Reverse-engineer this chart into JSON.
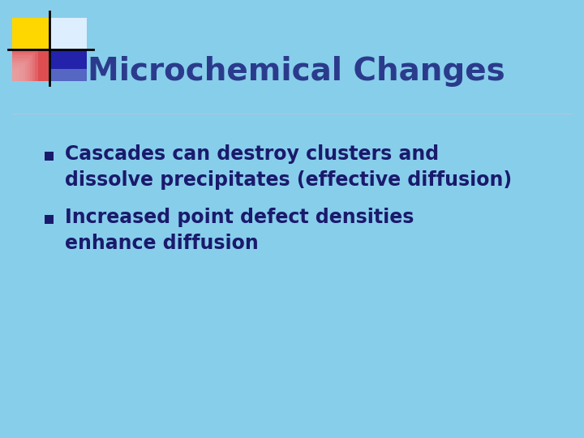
{
  "background_color": "#87CEEB",
  "title": "Microchemical Changes",
  "title_color": "#2B3B8C",
  "title_fontsize": 28,
  "line_color": "#A8C8DC",
  "bullet_color": "#1A1A6C",
  "bullet_fontsize": 17,
  "bullet_items": [
    [
      "Cascades can destroy clusters and",
      "dissolve precipitates (effective diffusion)"
    ],
    [
      "Increased point defect densities",
      "enhance diffusion"
    ]
  ],
  "square_yellow": "#FFD700",
  "square_red": "#E84040",
  "square_blue": "#2222AA",
  "square_white": "#DDEEFF",
  "square_blue_light": "#88AADD"
}
